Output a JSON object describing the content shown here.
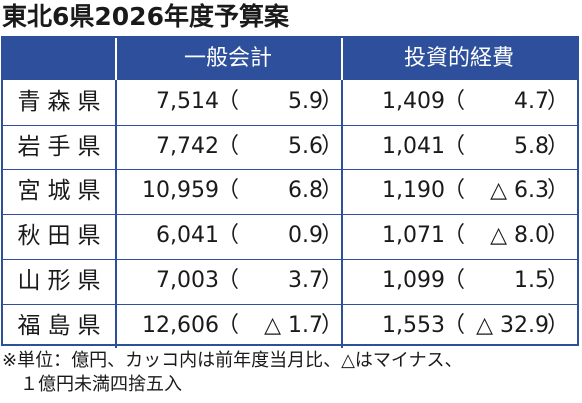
{
  "title": "東北6県2026年度予算案",
  "table": {
    "headers": [
      "一般会計",
      "投資的経費"
    ],
    "paren_open": "（",
    "paren_close": "）",
    "rows": [
      [
        "青森県",
        "7,514",
        "5.9",
        "1,409",
        "4.7"
      ],
      [
        "岩手県",
        "7,742",
        "5.6",
        "1,041",
        "5.8"
      ],
      [
        "宮城県",
        "10,959",
        "6.8",
        "1,190",
        "△ 6.3"
      ],
      [
        "秋田県",
        "6,041",
        "0.9",
        "1,071",
        "△ 8.0"
      ],
      [
        "山形県",
        "7,003",
        "3.7",
        "1,099",
        "1.5"
      ],
      [
        "福島県",
        "12,606",
        "△ 1.7",
        "1,553",
        "△ 32.9"
      ]
    ]
  },
  "note": [
    "※単位：億円、カッコ内は前年度当月比、△はマイナス、",
    "１億円未満四捨五入"
  ]
}
